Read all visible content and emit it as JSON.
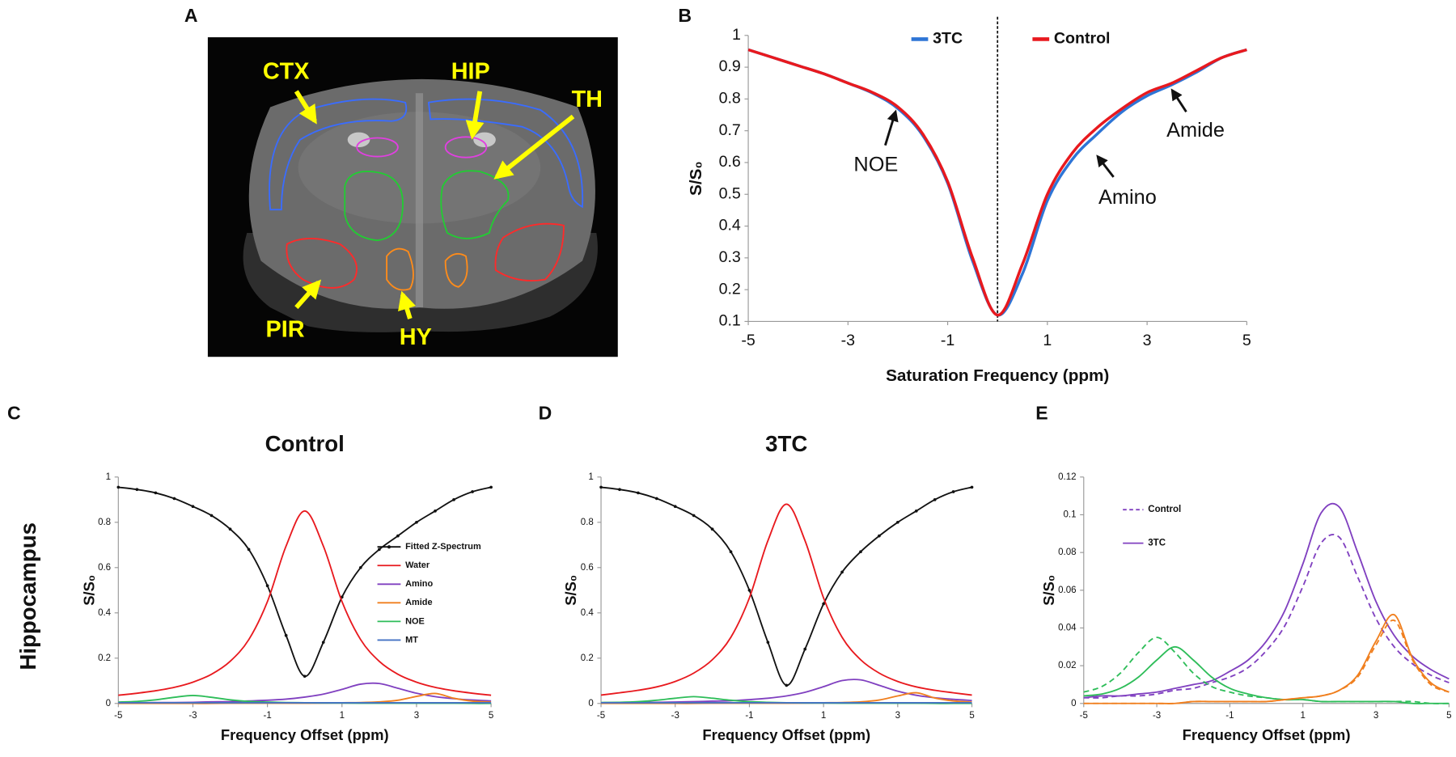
{
  "image_panel": {
    "label": "A",
    "regions": [
      "CTX",
      "HIP",
      "TH",
      "PIR",
      "HY"
    ]
  },
  "row_label": "Hippocampus",
  "chart_data": [
    {
      "type": "line",
      "panel": "B",
      "xlabel": "Saturation Frequency (ppm)",
      "ylabel": "S/S₀",
      "x": [
        -5,
        -4.5,
        -4,
        -3.5,
        -3,
        -2.5,
        -2,
        -1.5,
        -1,
        -0.5,
        0,
        0.5,
        1,
        1.5,
        2,
        2.5,
        3,
        3.5,
        4,
        4.5,
        5
      ],
      "series": [
        {
          "name": "3TC",
          "color": "#2e75d6",
          "values": [
            0.955,
            0.93,
            0.905,
            0.88,
            0.85,
            0.818,
            0.77,
            0.685,
            0.535,
            0.29,
            0.12,
            0.25,
            0.48,
            0.61,
            0.69,
            0.76,
            0.81,
            0.845,
            0.885,
            0.93,
            0.955
          ]
        },
        {
          "name": "Control",
          "color": "#e8191e",
          "values": [
            0.955,
            0.93,
            0.905,
            0.88,
            0.85,
            0.82,
            0.775,
            0.69,
            0.54,
            0.3,
            0.12,
            0.28,
            0.5,
            0.63,
            0.71,
            0.77,
            0.82,
            0.85,
            0.89,
            0.93,
            0.955
          ]
        }
      ],
      "xlim": [
        -5,
        5
      ],
      "ylim": [
        0.1,
        1
      ],
      "xticks": [
        -5,
        -3,
        -1,
        1,
        3,
        5
      ],
      "yticks": [
        0.1,
        0.2,
        0.3,
        0.4,
        0.5,
        0.6,
        0.7,
        0.8,
        0.9,
        1
      ],
      "vline": 0,
      "legend": "top",
      "annotations": [
        "NOE",
        "Amino",
        "Amide"
      ]
    },
    {
      "type": "line",
      "panel": "C",
      "title": "Control",
      "xlabel": "Frequency Offset (ppm)",
      "ylabel": "S/S₀",
      "x": [
        -5,
        -4.5,
        -4,
        -3.5,
        -3,
        -2.5,
        -2,
        -1.5,
        -1,
        -0.5,
        0,
        0.5,
        1,
        1.5,
        2,
        2.5,
        3,
        3.5,
        4,
        4.5,
        5
      ],
      "series": [
        {
          "name": "Fitted Z-Spectrum",
          "color": "#111111",
          "markers": true,
          "values": [
            0.955,
            0.945,
            0.93,
            0.905,
            0.87,
            0.83,
            0.77,
            0.68,
            0.52,
            0.3,
            0.12,
            0.27,
            0.47,
            0.6,
            0.68,
            0.74,
            0.8,
            0.85,
            0.9,
            0.935,
            0.955
          ]
        },
        {
          "name": "Water",
          "color": "#e8191e",
          "values": [
            0.036,
            0.045,
            0.056,
            0.071,
            0.094,
            0.129,
            0.186,
            0.282,
            0.45,
            0.695,
            0.85,
            0.695,
            0.45,
            0.282,
            0.186,
            0.129,
            0.094,
            0.071,
            0.056,
            0.045,
            0.036
          ]
        },
        {
          "name": "Amino",
          "color": "#8040c0",
          "values": [
            0.003,
            0.003,
            0.004,
            0.004,
            0.005,
            0.007,
            0.008,
            0.011,
            0.014,
            0.019,
            0.028,
            0.041,
            0.062,
            0.085,
            0.088,
            0.067,
            0.045,
            0.03,
            0.021,
            0.015,
            0.011
          ]
        },
        {
          "name": "Amide",
          "color": "#f07f1e",
          "values": [
            0,
            0,
            0,
            0,
            0,
            0,
            0.001,
            0.001,
            0.001,
            0.001,
            0.001,
            0.002,
            0.003,
            0.004,
            0.007,
            0.014,
            0.031,
            0.044,
            0.023,
            0.01,
            0.006
          ]
        },
        {
          "name": "NOE",
          "color": "#2ebd59",
          "values": [
            0.006,
            0.009,
            0.016,
            0.027,
            0.035,
            0.027,
            0.016,
            0.009,
            0.006,
            0.004,
            0.003,
            0.002,
            0.002,
            0.001,
            0.001,
            0.001,
            0.001,
            0.001,
            0.001,
            0,
            0
          ]
        },
        {
          "name": "MT",
          "color": "#4472c4",
          "values": [
            0.003,
            0.003,
            0.003,
            0.003,
            0.003,
            0.003,
            0.003,
            0.003,
            0.003,
            0.003,
            0.003,
            0.003,
            0.003,
            0.003,
            0.003,
            0.003,
            0.003,
            0.003,
            0.003,
            0.003,
            0.003
          ]
        }
      ],
      "xlim": [
        -5,
        5
      ],
      "ylim": [
        0,
        1
      ],
      "xticks": [
        -5,
        -3,
        -1,
        1,
        3,
        5
      ],
      "yticks": [
        0,
        0.2,
        0.4,
        0.6,
        0.8,
        1
      ],
      "legend": "right"
    },
    {
      "type": "line",
      "panel": "D",
      "title": "3TC",
      "xlabel": "Frequency Offset (ppm)",
      "ylabel": "S/S₀",
      "x": [
        -5,
        -4.5,
        -4,
        -3.5,
        -3,
        -2.5,
        -2,
        -1.5,
        -1,
        -0.5,
        0,
        0.5,
        1,
        1.5,
        2,
        2.5,
        3,
        3.5,
        4,
        4.5,
        5
      ],
      "series": [
        {
          "color": "#111111",
          "markers": true,
          "values": [
            0.955,
            0.945,
            0.93,
            0.905,
            0.87,
            0.83,
            0.77,
            0.67,
            0.5,
            0.27,
            0.08,
            0.24,
            0.44,
            0.58,
            0.67,
            0.74,
            0.8,
            0.85,
            0.9,
            0.935,
            0.955
          ]
        },
        {
          "color": "#e8191e",
          "values": [
            0.037,
            0.047,
            0.058,
            0.073,
            0.097,
            0.134,
            0.193,
            0.292,
            0.466,
            0.719,
            0.88,
            0.719,
            0.466,
            0.292,
            0.193,
            0.134,
            0.097,
            0.073,
            0.058,
            0.047,
            0.037
          ]
        },
        {
          "color": "#8040c0",
          "values": [
            0.003,
            0.004,
            0.004,
            0.005,
            0.006,
            0.008,
            0.01,
            0.012,
            0.017,
            0.023,
            0.033,
            0.049,
            0.074,
            0.101,
            0.104,
            0.08,
            0.054,
            0.036,
            0.025,
            0.018,
            0.013
          ]
        },
        {
          "color": "#f07f1e",
          "values": [
            0,
            0,
            0,
            0,
            0,
            0,
            0.001,
            0.001,
            0.001,
            0.001,
            0.001,
            0.002,
            0.003,
            0.004,
            0.007,
            0.015,
            0.033,
            0.047,
            0.024,
            0.011,
            0.006
          ]
        },
        {
          "color": "#2ebd59",
          "values": [
            0.004,
            0.005,
            0.008,
            0.014,
            0.023,
            0.03,
            0.023,
            0.014,
            0.008,
            0.005,
            0.003,
            0.002,
            0.002,
            0.001,
            0.001,
            0.001,
            0.001,
            0.001,
            0,
            0,
            0
          ]
        },
        {
          "color": "#4472c4",
          "values": [
            0.003,
            0.003,
            0.003,
            0.003,
            0.003,
            0.003,
            0.003,
            0.003,
            0.003,
            0.003,
            0.003,
            0.003,
            0.003,
            0.003,
            0.003,
            0.003,
            0.003,
            0.003,
            0.003,
            0.003,
            0.003
          ]
        }
      ],
      "xlim": [
        -5,
        5
      ],
      "ylim": [
        0,
        1
      ],
      "xticks": [
        -5,
        -3,
        -1,
        1,
        3,
        5
      ],
      "yticks": [
        0,
        0.2,
        0.4,
        0.6,
        0.8,
        1
      ],
      "legend": false
    },
    {
      "type": "line",
      "panel": "E",
      "xlabel": "Frequency Offset (ppm)",
      "ylabel": "S/S₀",
      "x": [
        -5,
        -4.5,
        -4,
        -3.5,
        -3,
        -2.5,
        -2,
        -1.5,
        -1,
        -0.5,
        0,
        0.5,
        1,
        1.5,
        2,
        2.5,
        3,
        3.5,
        4,
        4.5,
        5
      ],
      "series": [
        {
          "name": "Control",
          "color": "#8040c0",
          "dashed": true,
          "values": [
            0.003,
            0.003,
            0.004,
            0.004,
            0.005,
            0.007,
            0.008,
            0.011,
            0.014,
            0.019,
            0.028,
            0.041,
            0.062,
            0.085,
            0.088,
            0.067,
            0.045,
            0.03,
            0.021,
            0.015,
            0.011
          ]
        },
        {
          "name": "3TC",
          "color": "#8040c0",
          "values": [
            0.003,
            0.004,
            0.004,
            0.005,
            0.006,
            0.008,
            0.01,
            0.012,
            0.017,
            0.023,
            0.033,
            0.049,
            0.074,
            0.101,
            0.104,
            0.08,
            0.054,
            0.036,
            0.025,
            0.018,
            0.013
          ]
        },
        {
          "color": "#2ebd59",
          "dashed": true,
          "values": [
            0.006,
            0.009,
            0.016,
            0.027,
            0.035,
            0.027,
            0.016,
            0.009,
            0.006,
            0.004,
            0.003,
            0.002,
            0.002,
            0.001,
            0.001,
            0.001,
            0.001,
            0.001,
            0.001,
            0,
            0
          ]
        },
        {
          "color": "#2ebd59",
          "values": [
            0.004,
            0.005,
            0.008,
            0.014,
            0.023,
            0.03,
            0.023,
            0.014,
            0.008,
            0.005,
            0.003,
            0.002,
            0.002,
            0.001,
            0.001,
            0.001,
            0.001,
            0.001,
            0,
            0,
            0
          ]
        },
        {
          "color": "#f07f1e",
          "dashed": true,
          "values": [
            0,
            0,
            0,
            0,
            0,
            0,
            0.001,
            0.001,
            0.001,
            0.001,
            0.001,
            0.002,
            0.003,
            0.004,
            0.007,
            0.014,
            0.031,
            0.044,
            0.023,
            0.01,
            0.006
          ]
        },
        {
          "color": "#f07f1e",
          "values": [
            0,
            0,
            0,
            0,
            0,
            0,
            0.001,
            0.001,
            0.001,
            0.001,
            0.001,
            0.002,
            0.003,
            0.004,
            0.007,
            0.015,
            0.033,
            0.047,
            0.024,
            0.011,
            0.006
          ]
        }
      ],
      "xlim": [
        -5,
        5
      ],
      "ylim": [
        0,
        0.12
      ],
      "xticks": [
        -5,
        -3,
        -1,
        1,
        3,
        5
      ],
      "yticks": [
        0,
        0.02,
        0.04,
        0.06,
        0.08,
        0.1,
        0.12
      ],
      "legend": "left"
    }
  ]
}
